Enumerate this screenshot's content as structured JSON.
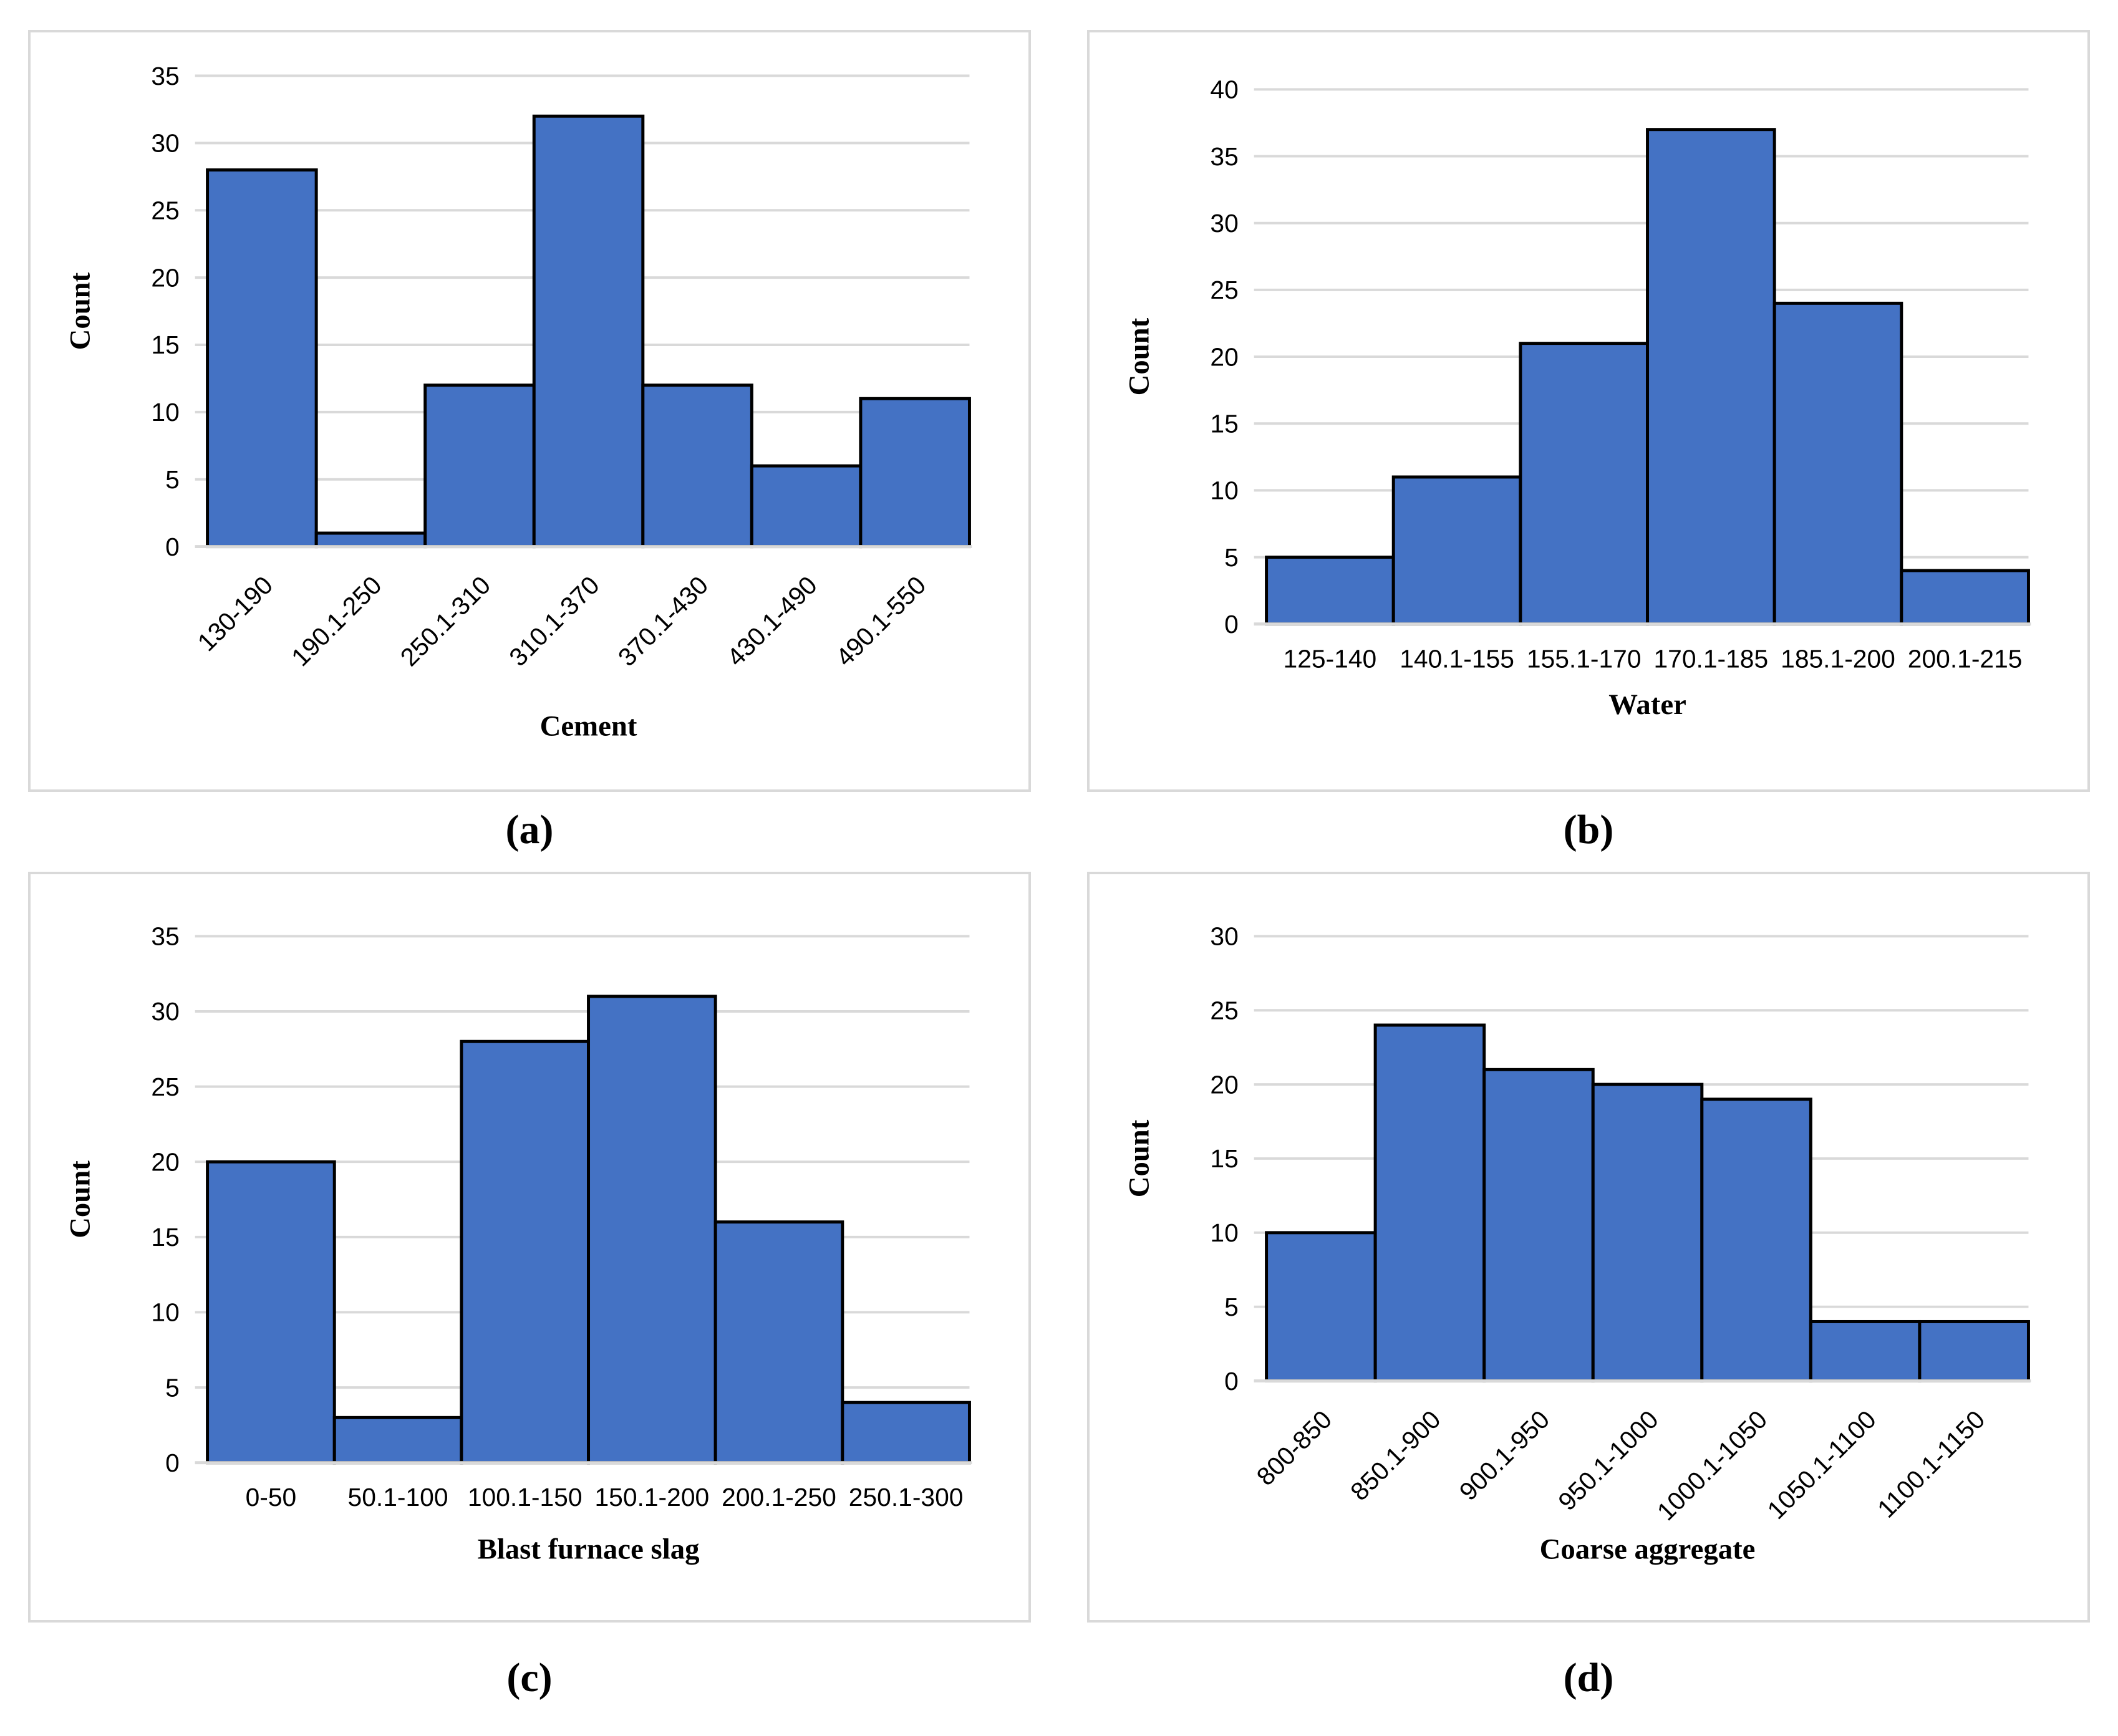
{
  "figure": {
    "type": "histogram-grid",
    "rows": 2,
    "cols": 2
  },
  "styles": {
    "bar_fill": "#4472C4",
    "bar_stroke": "#000000",
    "grid_color": "#D9D9D9",
    "axis_line_color": "#D9D9D9",
    "panel_border": "#D9D9D9",
    "text_color": "#000000"
  },
  "chart_data": [
    {
      "type": "bar",
      "panel_label": "(a)",
      "title": "",
      "xlabel": "Cement",
      "ylabel": "Count",
      "categories": [
        "130-190",
        "190.1-250",
        "250.1-310",
        "310.1-370",
        "370.1-430",
        "430.1-490",
        "490.1-550"
      ],
      "values": [
        28,
        1,
        12,
        32,
        12,
        6,
        11
      ],
      "ylim": [
        0,
        35
      ],
      "ystep": 5,
      "x_tick_rotation": 45,
      "grid": true,
      "legend": null
    },
    {
      "type": "bar",
      "panel_label": "(b)",
      "title": "",
      "xlabel": "Water",
      "ylabel": "Count",
      "categories": [
        "125-140",
        "140.1-155",
        "155.1-170",
        "170.1-185",
        "185.1-200",
        "200.1-215"
      ],
      "values": [
        5,
        11,
        21,
        37,
        24,
        4
      ],
      "ylim": [
        0,
        40
      ],
      "ystep": 5,
      "x_tick_rotation": 0,
      "grid": true,
      "legend": null
    },
    {
      "type": "bar",
      "panel_label": "(c)",
      "title": "",
      "xlabel": "Blast furnace slag",
      "ylabel": "Count",
      "categories": [
        "0-50",
        "50.1-100",
        "100.1-150",
        "150.1-200",
        "200.1-250",
        "250.1-300"
      ],
      "values": [
        20,
        3,
        28,
        31,
        16,
        4
      ],
      "ylim": [
        0,
        35
      ],
      "ystep": 5,
      "x_tick_rotation": 0,
      "grid": true,
      "legend": null
    },
    {
      "type": "bar",
      "panel_label": "(d)",
      "title": "",
      "xlabel": "Coarse aggregate",
      "ylabel": "Count",
      "categories": [
        "800-850",
        "850.1-900",
        "900.1-950",
        "950.1-1000",
        "1000.1-1050",
        "1050.1-1100",
        "1100.1-1150"
      ],
      "values": [
        10,
        24,
        21,
        20,
        19,
        4,
        4
      ],
      "ylim": [
        0,
        30
      ],
      "ystep": 5,
      "x_tick_rotation": 45,
      "grid": true,
      "legend": null
    }
  ]
}
